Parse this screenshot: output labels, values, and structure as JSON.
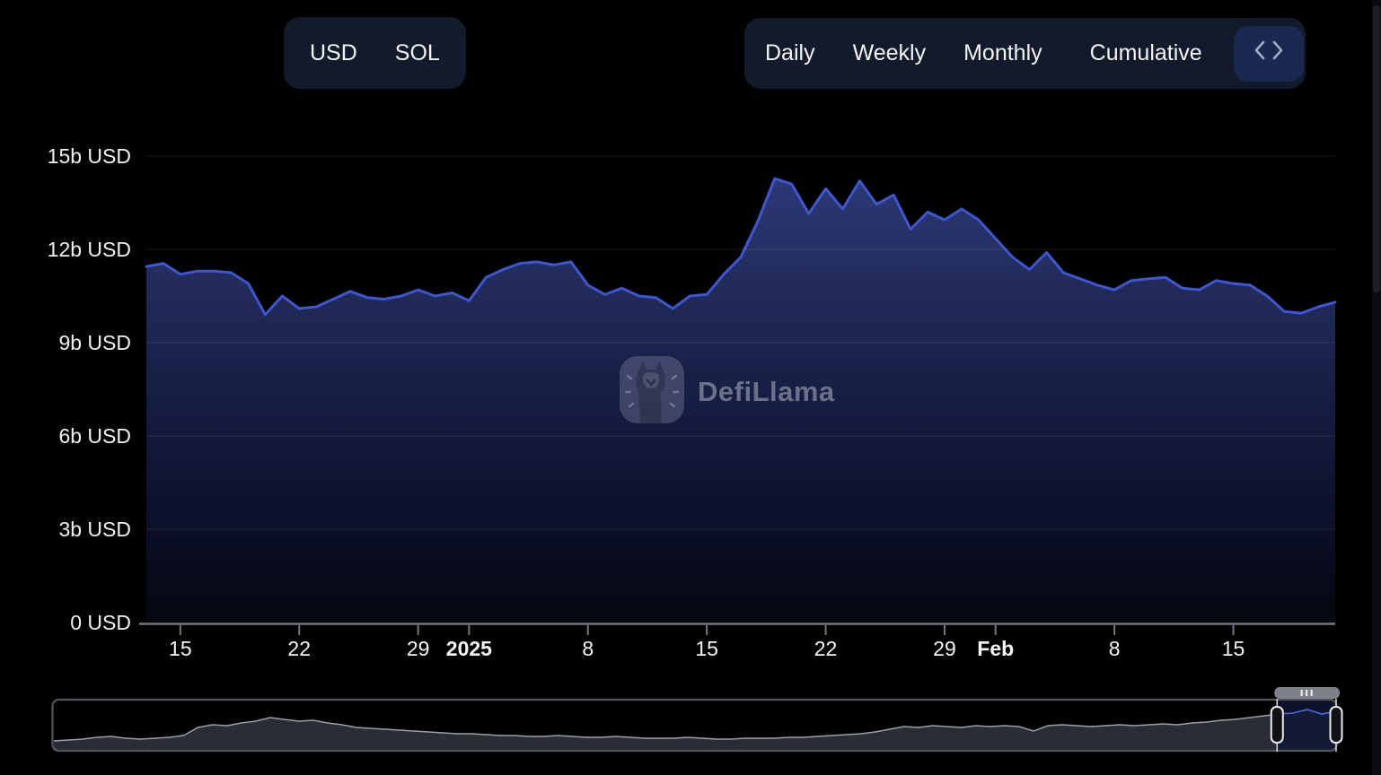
{
  "header": {
    "currency_toggle": {
      "options": [
        {
          "label": "USD",
          "active": true
        },
        {
          "label": "SOL",
          "active": false
        }
      ]
    },
    "interval_toggle": {
      "options": [
        {
          "label": "Daily",
          "active": false
        },
        {
          "label": "Weekly",
          "active": false
        },
        {
          "label": "Monthly",
          "active": false
        },
        {
          "label": "Cumulative",
          "active": true
        }
      ],
      "code_button_icon": "code-angle-brackets-icon"
    }
  },
  "watermark": {
    "text": "DefiLlama",
    "icon": "defillama-llama-logo-icon"
  },
  "colors": {
    "background": "#000000",
    "panel": "#121a2c",
    "active_pill": "#3a4356",
    "code_button": "#1b2950",
    "series_line": "#3e57cd",
    "area_top": "#2e3b7e",
    "area_bottom": "#05070f",
    "navigator_selection_line": "#4b6ae0"
  },
  "chart_data": {
    "type": "area",
    "title": "",
    "unit": "USD",
    "interval": "daily",
    "start_date": "2024-12-13",
    "end_date": "2025-02-21",
    "ylim": [
      0,
      15
    ],
    "grid": true,
    "values_unit": "billions USD (cumulative)",
    "values": [
      11.45,
      11.55,
      11.2,
      11.3,
      11.3,
      11.25,
      10.9,
      9.9,
      10.5,
      10.1,
      10.15,
      10.4,
      10.65,
      10.45,
      10.4,
      10.5,
      10.7,
      10.5,
      10.6,
      10.35,
      11.1,
      11.35,
      11.55,
      11.6,
      11.5,
      11.6,
      10.85,
      10.55,
      10.75,
      10.5,
      10.45,
      10.1,
      10.5,
      10.55,
      11.2,
      11.75,
      12.9,
      14.28,
      14.1,
      13.15,
      13.95,
      13.3,
      14.2,
      13.45,
      13.75,
      12.65,
      13.2,
      12.95,
      13.3,
      12.95,
      12.35,
      11.75,
      11.35,
      11.9,
      11.25,
      11.05,
      10.85,
      10.7,
      11.0,
      11.05,
      11.1,
      10.75,
      10.7,
      11.0,
      10.9,
      10.85,
      10.5,
      10.0,
      9.95,
      10.15,
      10.3
    ],
    "y_ticks": [
      {
        "label": "0 USD",
        "value": 0
      },
      {
        "label": "3b USD",
        "value": 3
      },
      {
        "label": "6b USD",
        "value": 6
      },
      {
        "label": "9b USD",
        "value": 9
      },
      {
        "label": "12b USD",
        "value": 12
      },
      {
        "label": "15b USD",
        "value": 15
      }
    ],
    "x_ticks": [
      {
        "label": "15",
        "day": 2,
        "bold": false
      },
      {
        "label": "22",
        "day": 9,
        "bold": false
      },
      {
        "label": "29",
        "day": 16,
        "bold": false
      },
      {
        "label": "2025",
        "day": 19,
        "bold": true
      },
      {
        "label": "8",
        "day": 26,
        "bold": false
      },
      {
        "label": "15",
        "day": 33,
        "bold": false
      },
      {
        "label": "22",
        "day": 40,
        "bold": false
      },
      {
        "label": "29",
        "day": 47,
        "bold": false
      },
      {
        "label": "Feb",
        "day": 50,
        "bold": true
      },
      {
        "label": "8",
        "day": 57,
        "bold": false
      },
      {
        "label": "15",
        "day": 64,
        "bold": false
      }
    ]
  },
  "navigator": {
    "values": [
      0.18,
      0.2,
      0.22,
      0.26,
      0.28,
      0.24,
      0.22,
      0.24,
      0.26,
      0.3,
      0.48,
      0.54,
      0.52,
      0.58,
      0.62,
      0.7,
      0.66,
      0.62,
      0.64,
      0.58,
      0.54,
      0.48,
      0.46,
      0.44,
      0.42,
      0.4,
      0.38,
      0.36,
      0.34,
      0.34,
      0.32,
      0.3,
      0.3,
      0.28,
      0.28,
      0.3,
      0.28,
      0.26,
      0.26,
      0.28,
      0.26,
      0.24,
      0.24,
      0.24,
      0.26,
      0.24,
      0.22,
      0.22,
      0.24,
      0.24,
      0.24,
      0.26,
      0.26,
      0.28,
      0.3,
      0.32,
      0.34,
      0.38,
      0.44,
      0.5,
      0.48,
      0.52,
      0.5,
      0.48,
      0.52,
      0.5,
      0.52,
      0.5,
      0.4,
      0.52,
      0.54,
      0.52,
      0.5,
      0.52,
      0.54,
      0.52,
      0.54,
      0.56,
      0.54,
      0.58,
      0.6,
      0.64,
      0.66,
      0.7,
      0.74,
      0.78,
      0.8,
      0.88,
      0.78,
      0.84
    ],
    "selection": {
      "start": 0.954,
      "end": 1.0
    }
  }
}
